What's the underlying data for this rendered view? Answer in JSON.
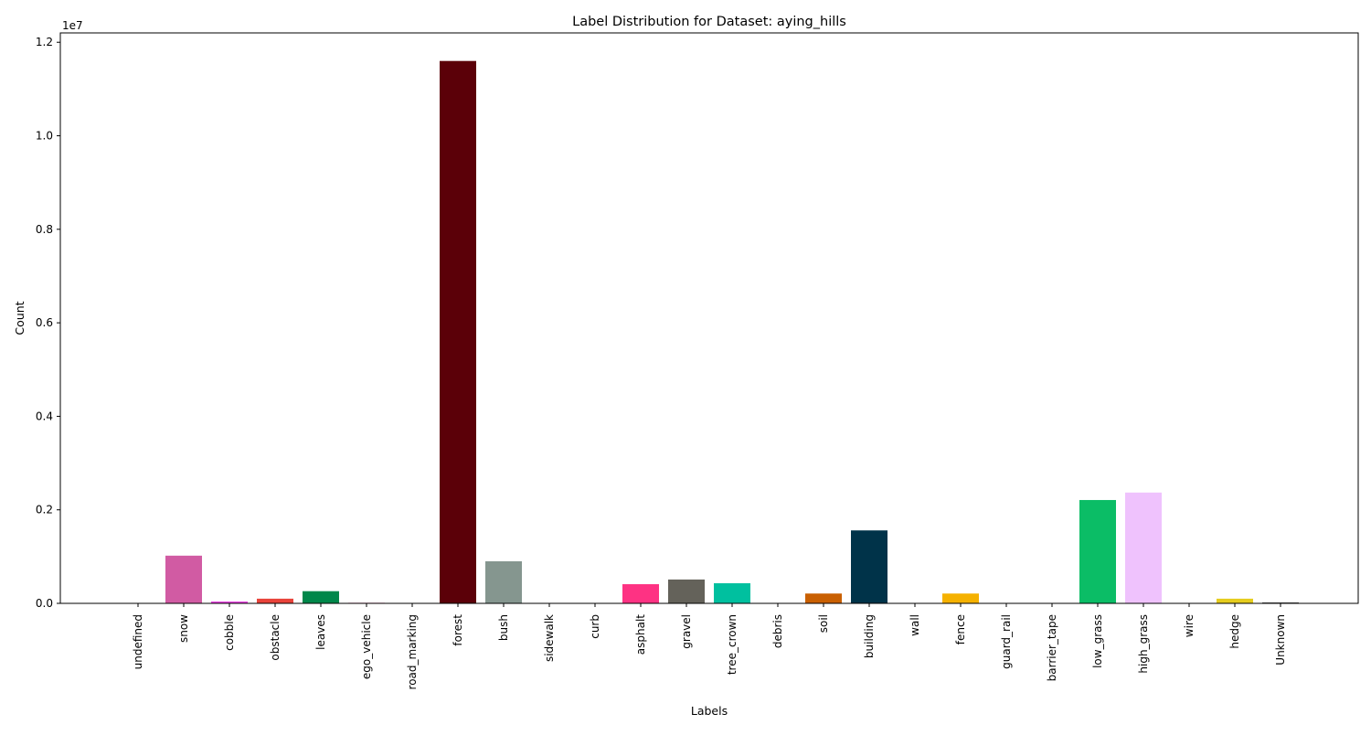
{
  "chart_data": {
    "type": "bar",
    "title": "Label Distribution for Dataset: aying_hills",
    "xlabel": "Labels",
    "ylabel": "Count",
    "y_offset_label": "1e7",
    "ylim": [
      0,
      12200000
    ],
    "y_ticks": [
      0,
      2000000,
      4000000,
      6000000,
      8000000,
      10000000,
      12000000
    ],
    "y_tick_labels": [
      "0.0",
      "0.2",
      "0.4",
      "0.6",
      "0.8",
      "1.0",
      "1.2"
    ],
    "grid": false,
    "categories": [
      "undefined",
      "snow",
      "cobble",
      "obstacle",
      "leaves",
      "ego_vehicle",
      "road_marking",
      "forest",
      "bush",
      "sidewalk",
      "curb",
      "asphalt",
      "gravel",
      "tree_crown",
      "debris",
      "soil",
      "building",
      "wall",
      "fence",
      "guard_rail",
      "barrier_tape",
      "low_grass",
      "high_grass",
      "wire",
      "hedge",
      "Unknown"
    ],
    "values": [
      0,
      1020000,
      40000,
      100000,
      260000,
      20000,
      0,
      11600000,
      900000,
      0,
      0,
      410000,
      510000,
      430000,
      0,
      210000,
      1560000,
      0,
      210000,
      0,
      0,
      2210000,
      2370000,
      0,
      100000,
      20000
    ],
    "colors": [
      "#000000",
      "#d15ba3",
      "#e845e1",
      "#e8433a",
      "#00874a",
      "#fbd6e7",
      "#ffffff",
      "#5b0008",
      "#85968f",
      "#ffffff",
      "#ffffff",
      "#fe3283",
      "#64625a",
      "#00c09f",
      "#ffffff",
      "#c96002",
      "#003349",
      "#ffffff",
      "#f5b100",
      "#ffffff",
      "#ffffff",
      "#0bbd66",
      "#efc2fd",
      "#ffffff",
      "#e5cc1e",
      "#555555"
    ]
  }
}
